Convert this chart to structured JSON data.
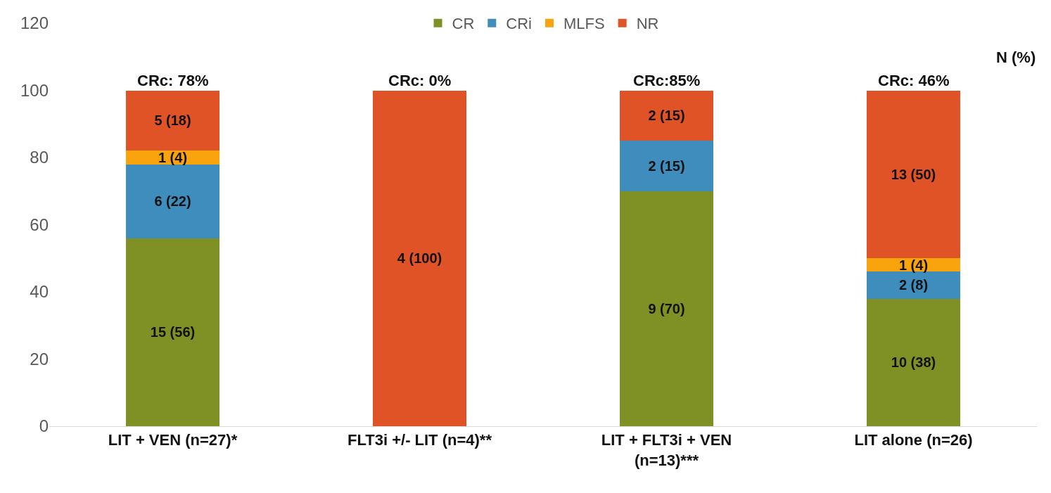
{
  "chart_data": {
    "type": "bar",
    "stacked": true,
    "categories": [
      "LIT + VEN (n=27)*",
      "FLT3i +/- LIT (n=4)**",
      "LIT + FLT3i + VEN (n=13)***",
      "LIT alone (n=26)"
    ],
    "series": [
      {
        "name": "CR",
        "color": "#7f9124",
        "values": [
          56,
          0,
          70,
          38
        ],
        "value_labels": [
          "15 (56)",
          null,
          "9 (70)",
          "10 (38)"
        ]
      },
      {
        "name": "CRi",
        "color": "#3e8dbd",
        "values": [
          22,
          0,
          15,
          8
        ],
        "value_labels": [
          "6 (22)",
          null,
          "2 (15)",
          "2 (8)"
        ]
      },
      {
        "name": "MLFS",
        "color": "#f9a30d",
        "values": [
          4,
          0,
          0,
          4
        ],
        "value_labels": [
          "1 (4)",
          null,
          null,
          "1 (4)"
        ]
      },
      {
        "name": "NR",
        "color": "#df5326",
        "values": [
          18,
          100,
          15,
          50
        ],
        "value_labels": [
          "5 (18)",
          "4 (100)",
          "2 (15)",
          "13 (50)"
        ]
      }
    ],
    "ylim": [
      0,
      120
    ],
    "yticks": [
      0,
      20,
      40,
      60,
      80,
      100,
      120
    ],
    "grid": false,
    "legend": "top",
    "annotations": [
      {
        "text": "CRc: 78%",
        "x": "LIT + VEN (n=27)*",
        "y": 100
      },
      {
        "text": "CRc: 0%",
        "x": "FLT3i +/- LIT (n=4)**",
        "y": 100
      },
      {
        "text": "CRc:85%",
        "x": "LIT + FLT3i + VEN (n=13)***",
        "y": 100
      },
      {
        "text": "CRc: 46%",
        "x": "LIT alone (n=26)",
        "y": 100
      },
      "N (%)"
    ]
  }
}
